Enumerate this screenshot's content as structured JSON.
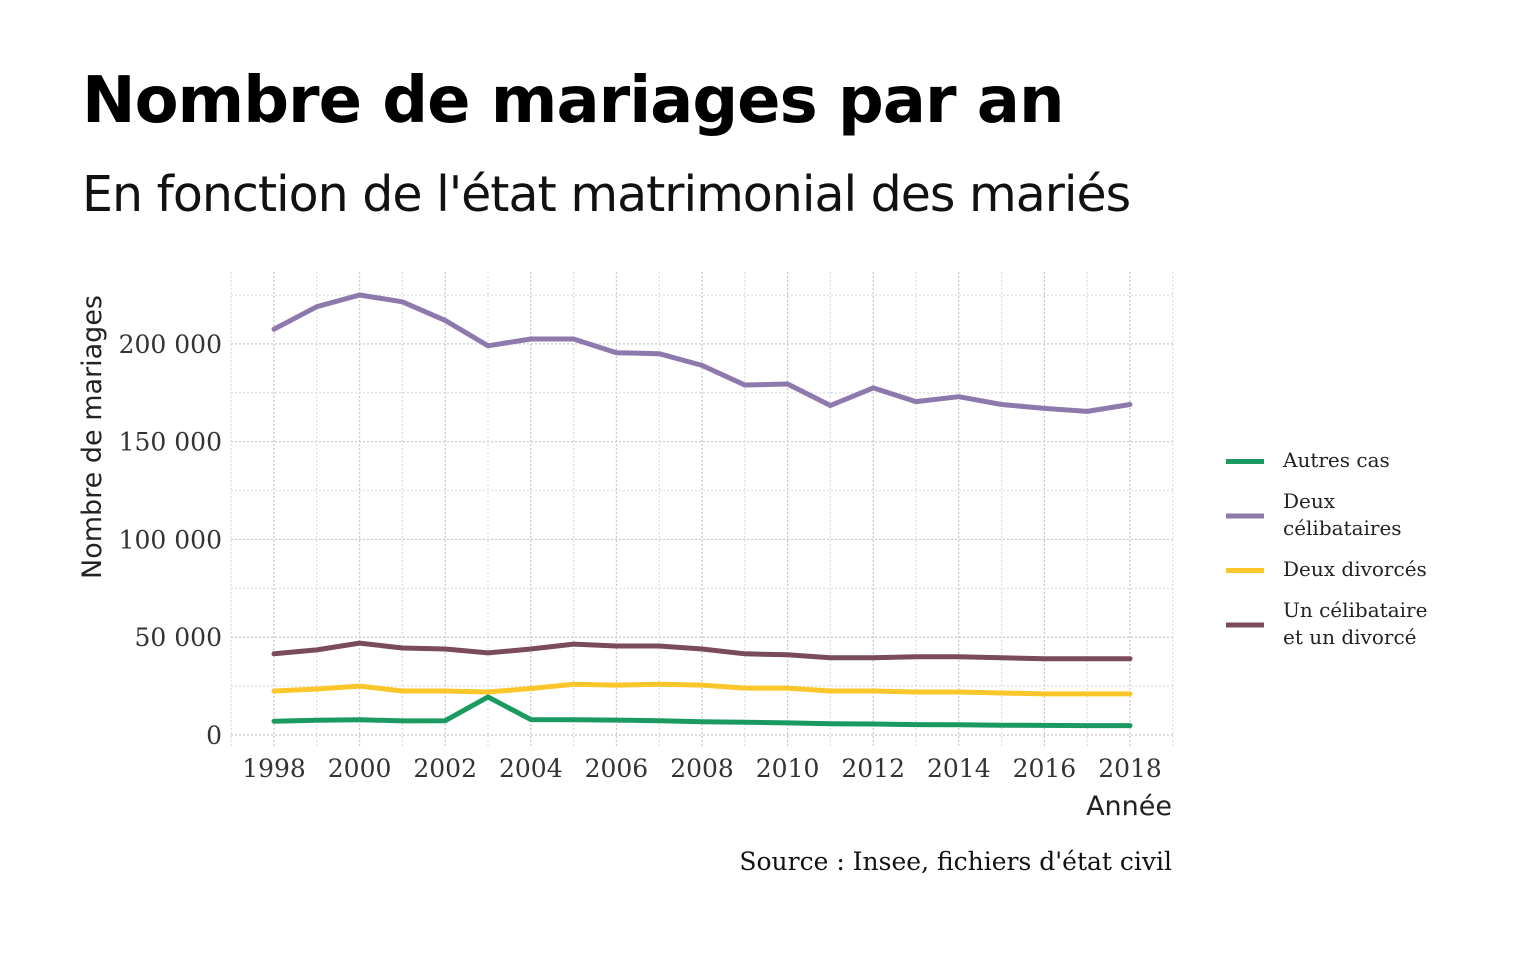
{
  "chart_data": {
    "type": "line",
    "title": "Nombre de mariages par an",
    "subtitle": "En fonction de l'état matrimonial des mariés",
    "xlabel": "Année",
    "ylabel": "Nombre de mariages",
    "caption": "Source : Insee, fichiers d'état civil",
    "x": [
      1998,
      1999,
      2000,
      2001,
      2002,
      2003,
      2004,
      2005,
      2006,
      2007,
      2008,
      2009,
      2010,
      2011,
      2012,
      2013,
      2014,
      2015,
      2016,
      2017,
      2018
    ],
    "xticks": [
      1998,
      2000,
      2002,
      2004,
      2006,
      2008,
      2010,
      2012,
      2014,
      2016,
      2018
    ],
    "xtick_labels": [
      "1998",
      "2000",
      "2002",
      "2004",
      "2006",
      "2008",
      "2010",
      "2012",
      "2014",
      "2016",
      "2018"
    ],
    "xlim": [
      1998,
      2018
    ],
    "yticks": [
      0,
      50000,
      100000,
      150000,
      200000
    ],
    "ytick_labels": [
      "0",
      "50 000",
      "100 000",
      "150 000",
      "200 000"
    ],
    "ylim": [
      0,
      225000
    ],
    "grid": true,
    "legend_position": "right",
    "series": [
      {
        "name": "Autres cas",
        "color": "#1a9a61",
        "values": [
          7000,
          7500,
          7800,
          7200,
          7300,
          19500,
          7900,
          7800,
          7600,
          7300,
          6800,
          6500,
          6200,
          5800,
          5600,
          5300,
          5200,
          5000,
          4900,
          4800,
          4800
        ]
      },
      {
        "name": "Deux célibataires",
        "label_lines": [
          "Deux",
          "célibataires"
        ],
        "color": "#8e79ad",
        "values": [
          207500,
          219000,
          225000,
          221500,
          212000,
          199000,
          202500,
          202500,
          195500,
          195000,
          189000,
          179000,
          179500,
          168500,
          177500,
          170500,
          173000,
          169000,
          167000,
          165500,
          169000
        ]
      },
      {
        "name": "Deux divorcés",
        "color": "#fbc62a",
        "values": [
          22500,
          23500,
          25000,
          22500,
          22500,
          22000,
          23800,
          26000,
          25500,
          26000,
          25500,
          24000,
          24000,
          22500,
          22500,
          22000,
          22000,
          21500,
          21000,
          21000,
          21000
        ]
      },
      {
        "name": "Un célibataire et un divorcé",
        "label_lines": [
          "Un célibataire",
          "et un divorcé"
        ],
        "color": "#7a4b5c",
        "values": [
          41500,
          43500,
          47000,
          44500,
          44000,
          42000,
          44000,
          46500,
          45500,
          45500,
          44000,
          41500,
          41000,
          39500,
          39500,
          40000,
          40000,
          39500,
          39000,
          39000,
          39000
        ]
      }
    ]
  }
}
